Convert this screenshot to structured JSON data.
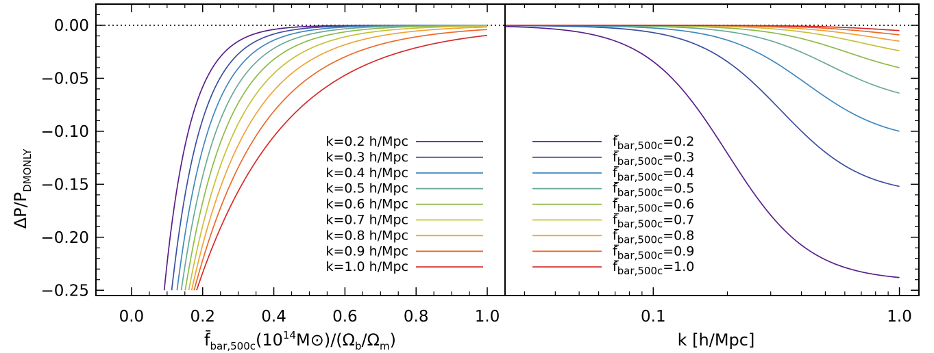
{
  "chart_data": [
    {
      "type": "line",
      "panel": "left",
      "xlabel": "f̄bar,500c(10^14 M⊙)/(Ωb/Ωm)",
      "ylabel": "ΔP/PDMONLY",
      "xlim": [
        -0.1,
        1.05
      ],
      "ylim": [
        -0.255,
        0.02
      ],
      "x_ticks": [
        0.0,
        0.2,
        0.4,
        0.6,
        0.8,
        1.0
      ],
      "x_tick_labels": [
        "0.0",
        "0.2",
        "0.4",
        "0.6",
        "0.8",
        "1.0"
      ],
      "y_ticks": [
        0.0,
        -0.05,
        -0.1,
        -0.15,
        -0.2,
        -0.25
      ],
      "y_tick_labels": [
        "0.00",
        "−0.05",
        "−0.10",
        "−0.15",
        "−0.20",
        "−0.25"
      ],
      "reference_line": 0.0,
      "legend_placement": "lower-right",
      "x": [
        0.08,
        0.09,
        0.1,
        0.11,
        0.12,
        0.13,
        0.14,
        0.15,
        0.16,
        0.17,
        0.18,
        0.19,
        0.2,
        0.22,
        0.24,
        0.26,
        0.28,
        0.3,
        0.32,
        0.34,
        0.36,
        0.38,
        0.4,
        0.42,
        0.45,
        0.48,
        0.5,
        0.55,
        0.6,
        0.65,
        0.7,
        0.75,
        0.8,
        0.85,
        0.9,
        0.95,
        1.0
      ],
      "series": [
        {
          "name": "k=0.2 h/Mpc",
          "color": "#5a1f8a"
        },
        {
          "name": "k=0.3 h/Mpc",
          "color": "#3b4f9e"
        },
        {
          "name": "k=0.4 h/Mpc",
          "color": "#3f88c0"
        },
        {
          "name": "k=0.5 h/Mpc",
          "color": "#6aaa98"
        },
        {
          "name": "k=0.6 h/Mpc",
          "color": "#8cbb4a"
        },
        {
          "name": "k=0.7 h/Mpc",
          "color": "#c6c03a"
        },
        {
          "name": "k=0.8 h/Mpc",
          "color": "#f0a23a"
        },
        {
          "name": "k=0.9 h/Mpc",
          "color": "#ea6a2a"
        },
        {
          "name": "k=1.0 h/Mpc",
          "color": "#d62a2a"
        }
      ],
      "legend_labels": [
        {
          "prefix": "k=",
          "value": "0.2",
          "unit": " h/Mpc"
        },
        {
          "prefix": "k=",
          "value": "0.3",
          "unit": " h/Mpc"
        },
        {
          "prefix": "k=",
          "value": "0.4",
          "unit": " h/Mpc"
        },
        {
          "prefix": "k=",
          "value": "0.5",
          "unit": " h/Mpc"
        },
        {
          "prefix": "k=",
          "value": "0.6",
          "unit": " h/Mpc"
        },
        {
          "prefix": "k=",
          "value": "0.7",
          "unit": " h/Mpc"
        },
        {
          "prefix": "k=",
          "value": "0.8",
          "unit": " h/Mpc"
        },
        {
          "prefix": "k=",
          "value": "0.9",
          "unit": " h/Mpc"
        },
        {
          "prefix": "k=",
          "value": "1.0",
          "unit": " h/Mpc"
        }
      ],
      "series_onset_x": [
        0.092,
        0.113,
        0.128,
        0.14,
        0.151,
        0.161,
        0.169,
        0.176,
        0.183
      ],
      "curve_values_approx": {
        "k=0.2 h/Mpc": {
          "x": [
            0.092,
            0.14,
            0.2,
            0.3,
            0.4,
            0.5,
            0.6,
            0.8,
            1.0
          ],
          "y": [
            -0.25,
            -0.13,
            -0.07,
            -0.03,
            -0.014,
            -0.007,
            -0.004,
            -0.0015,
            -0.0008
          ]
        },
        "k=1.0 h/Mpc": {
          "x": [
            0.183,
            0.22,
            0.3,
            0.4,
            0.5,
            0.6,
            0.8,
            1.0
          ],
          "y": [
            -0.25,
            -0.2,
            -0.122,
            -0.07,
            -0.042,
            -0.026,
            -0.012,
            -0.006
          ]
        }
      }
    },
    {
      "type": "line",
      "panel": "right",
      "xlabel": "k [h/Mpc]",
      "xscale": "log",
      "xlim": [
        0.025,
        1.2
      ],
      "ylim": [
        -0.255,
        0.02
      ],
      "x_ticks": [
        0.1,
        1.0
      ],
      "x_tick_labels": [
        "0.1",
        "1.0"
      ],
      "reference_line": 0.0,
      "legend_placement": "lower-left",
      "x": [
        0.025,
        0.03,
        0.04,
        0.05,
        0.06,
        0.07,
        0.08,
        0.09,
        0.1,
        0.12,
        0.14,
        0.16,
        0.18,
        0.2,
        0.22,
        0.25,
        0.28,
        0.32,
        0.36,
        0.4,
        0.45,
        0.5,
        0.55,
        0.6,
        0.7,
        0.8,
        0.9,
        1.0
      ],
      "series": [
        {
          "name": "f̄bar,500c=0.2",
          "color": "#5a1f8a",
          "end_value": -0.238
        },
        {
          "name": "f̄bar,500c=0.3",
          "color": "#3b4f9e",
          "end_value": -0.152
        },
        {
          "name": "f̄bar,500c=0.4",
          "color": "#3f88c0",
          "end_value": -0.1
        },
        {
          "name": "f̄bar,500c=0.5",
          "color": "#6aaa98",
          "end_value": -0.064
        },
        {
          "name": "f̄bar,500c=0.6",
          "color": "#8cbb4a",
          "end_value": -0.04
        },
        {
          "name": "f̄bar,500c=0.7",
          "color": "#c6c03a",
          "end_value": -0.024
        },
        {
          "name": "f̄bar,500c=0.8",
          "color": "#f0a23a",
          "end_value": -0.015
        },
        {
          "name": "f̄bar,500c=0.9",
          "color": "#ea6a2a",
          "end_value": -0.009
        },
        {
          "name": "f̄bar,500c=1.0",
          "color": "#d62a2a",
          "end_value": -0.005
        }
      ],
      "legend_labels": [
        {
          "prefix": "f",
          "sub": "bar,500c",
          "value": "=0.2"
        },
        {
          "prefix": "f",
          "sub": "bar,500c",
          "value": "=0.3"
        },
        {
          "prefix": "f",
          "sub": "bar,500c",
          "value": "=0.4"
        },
        {
          "prefix": "f",
          "sub": "bar,500c",
          "value": "=0.5"
        },
        {
          "prefix": "f",
          "sub": "bar,500c",
          "value": "=0.6"
        },
        {
          "prefix": "f",
          "sub": "bar,500c",
          "value": "=0.7"
        },
        {
          "prefix": "f",
          "sub": "bar,500c",
          "value": "=0.8"
        },
        {
          "prefix": "f",
          "sub": "bar,500c",
          "value": "=0.9"
        },
        {
          "prefix": "f",
          "sub": "bar,500c",
          "value": "=1.0"
        }
      ],
      "transition_k": [
        0.2,
        0.33,
        0.42,
        0.52,
        0.62,
        0.72,
        0.82,
        0.92,
        1.02
      ]
    }
  ]
}
